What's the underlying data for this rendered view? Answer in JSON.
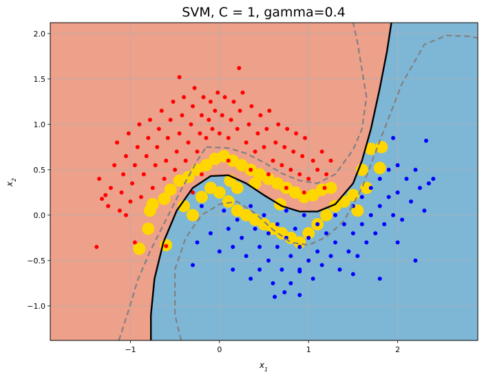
{
  "chart_data": {
    "type": "scatter",
    "title": "SVM, C = 1, gamma=0.4",
    "xlabel_base": "x",
    "xlabel_sub": "1",
    "ylabel_base": "x",
    "ylabel_sub": "2",
    "xlim": [
      -1.9,
      2.9
    ],
    "ylim": [
      -1.38,
      2.12
    ],
    "xticks": [
      -1,
      0,
      1,
      2
    ],
    "xtick_labels": [
      "−1",
      "0",
      "1",
      "2"
    ],
    "yticks": [
      -1.0,
      -0.5,
      0.0,
      0.5,
      1.0,
      1.5,
      2.0
    ],
    "ytick_labels": [
      "−1.0",
      "−0.5",
      "0.0",
      "0.5",
      "1.0",
      "1.5",
      "2.0"
    ],
    "grid": true,
    "colors": {
      "class0_region": "#eda08a",
      "class1_region": "#7eb6d6",
      "class0_points": "#ff0000",
      "class1_points": "#0000ff",
      "support_vectors": "#ffd700",
      "decision_boundary": "#000000",
      "margin": "#808080"
    },
    "decision_boundary": [
      [
        -0.77,
        -1.38
      ],
      [
        -0.77,
        -1.1
      ],
      [
        -0.73,
        -0.7
      ],
      [
        -0.63,
        -0.3
      ],
      [
        -0.48,
        0.05
      ],
      [
        -0.3,
        0.3
      ],
      [
        -0.1,
        0.43
      ],
      [
        0.1,
        0.44
      ],
      [
        0.3,
        0.35
      ],
      [
        0.5,
        0.22
      ],
      [
        0.7,
        0.1
      ],
      [
        0.9,
        0.04
      ],
      [
        1.1,
        0.04
      ],
      [
        1.3,
        0.12
      ],
      [
        1.5,
        0.35
      ],
      [
        1.6,
        0.6
      ],
      [
        1.7,
        0.95
      ],
      [
        1.8,
        1.4
      ],
      [
        1.88,
        1.8
      ],
      [
        1.93,
        2.12
      ]
    ],
    "margin_upper": [
      [
        -0.15,
        0.75
      ],
      [
        0.1,
        0.74
      ],
      [
        0.3,
        0.68
      ],
      [
        0.5,
        0.58
      ],
      [
        0.7,
        0.46
      ],
      [
        0.9,
        0.38
      ],
      [
        1.1,
        0.35
      ],
      [
        1.3,
        0.45
      ],
      [
        1.5,
        0.72
      ],
      [
        1.6,
        0.95
      ],
      [
        1.65,
        1.3
      ],
      [
        1.6,
        1.6
      ],
      [
        1.55,
        1.9
      ],
      [
        1.5,
        2.12
      ]
    ],
    "margin_lower": [
      [
        -0.43,
        -1.38
      ],
      [
        -0.5,
        -1.1
      ],
      [
        -0.5,
        -0.6
      ],
      [
        -0.38,
        -0.25
      ],
      [
        -0.2,
        0.0
      ],
      [
        0.0,
        0.12
      ],
      [
        0.2,
        0.15
      ],
      [
        0.4,
        0.02
      ],
      [
        0.6,
        -0.16
      ],
      [
        0.8,
        -0.3
      ],
      [
        1.0,
        -0.33
      ],
      [
        1.2,
        -0.24
      ],
      [
        1.4,
        -0.06
      ],
      [
        1.6,
        0.3
      ],
      [
        1.8,
        0.82
      ],
      [
        2.05,
        1.45
      ],
      [
        2.3,
        1.88
      ],
      [
        2.55,
        1.98
      ],
      [
        2.8,
        1.97
      ],
      [
        2.9,
        1.95
      ]
    ],
    "margin_left": [
      [
        -1.13,
        -1.38
      ],
      [
        -1.02,
        -1.05
      ],
      [
        -0.92,
        -0.72
      ],
      [
        -0.78,
        -0.4
      ],
      [
        -0.6,
        -0.05
      ],
      [
        -0.42,
        0.3
      ],
      [
        -0.25,
        0.6
      ],
      [
        -0.15,
        0.75
      ]
    ],
    "series": [
      {
        "class": 0,
        "points": [
          [
            -1.35,
            0.4
          ],
          [
            -1.32,
            0.18
          ],
          [
            -1.25,
            0.1
          ],
          [
            -1.22,
            0.3
          ],
          [
            -1.18,
            0.55
          ],
          [
            -1.15,
            0.8
          ],
          [
            -1.12,
            0.05
          ],
          [
            -1.1,
            0.25
          ],
          [
            -1.08,
            0.45
          ],
          [
            -1.05,
            0.65
          ],
          [
            -1.02,
            0.9
          ],
          [
            -1.0,
            0.15
          ],
          [
            -0.98,
            0.35
          ],
          [
            -0.95,
            0.55
          ],
          [
            -0.92,
            0.75
          ],
          [
            -0.9,
            1.0
          ],
          [
            -0.88,
            0.2
          ],
          [
            -0.85,
            0.45
          ],
          [
            -0.82,
            0.65
          ],
          [
            -0.8,
            0.85
          ],
          [
            -0.78,
            1.05
          ],
          [
            -0.75,
            0.3
          ],
          [
            -0.72,
            0.55
          ],
          [
            -0.7,
            0.75
          ],
          [
            -0.68,
            0.95
          ],
          [
            -0.65,
            1.15
          ],
          [
            -0.62,
            0.4
          ],
          [
            -0.6,
            0.6
          ],
          [
            -0.58,
            0.85
          ],
          [
            -0.55,
            1.05
          ],
          [
            -0.52,
            1.25
          ],
          [
            -0.5,
            0.5
          ],
          [
            -0.48,
            0.7
          ],
          [
            -0.45,
            0.9
          ],
          [
            -0.42,
            1.1
          ],
          [
            -0.4,
            1.3
          ],
          [
            -0.38,
            0.6
          ],
          [
            -0.35,
            0.8
          ],
          [
            -0.32,
            1.0
          ],
          [
            -0.3,
            1.2
          ],
          [
            -0.28,
            1.4
          ],
          [
            -0.25,
            0.7
          ],
          [
            -0.22,
            0.9
          ],
          [
            -0.2,
            1.1
          ],
          [
            -0.18,
            1.3
          ],
          [
            -0.15,
            0.85
          ],
          [
            -0.12,
            1.05
          ],
          [
            -0.1,
            1.25
          ],
          [
            -0.08,
            0.95
          ],
          [
            -0.05,
            1.15
          ],
          [
            -0.02,
            1.35
          ],
          [
            0.0,
            0.9
          ],
          [
            0.03,
            1.1
          ],
          [
            0.06,
            1.3
          ],
          [
            0.1,
            0.85
          ],
          [
            0.13,
            1.05
          ],
          [
            0.16,
            1.25
          ],
          [
            0.2,
            0.95
          ],
          [
            0.23,
            1.15
          ],
          [
            0.26,
            1.35
          ],
          [
            0.3,
            0.8
          ],
          [
            0.33,
            1.0
          ],
          [
            0.36,
            1.2
          ],
          [
            0.4,
            0.7
          ],
          [
            0.43,
            0.9
          ],
          [
            0.46,
            1.1
          ],
          [
            0.5,
            0.75
          ],
          [
            0.53,
            0.95
          ],
          [
            0.56,
            1.15
          ],
          [
            0.6,
            0.6
          ],
          [
            0.63,
            0.8
          ],
          [
            0.66,
            1.0
          ],
          [
            0.7,
            0.55
          ],
          [
            0.73,
            0.75
          ],
          [
            0.76,
            0.95
          ],
          [
            0.8,
            0.5
          ],
          [
            0.83,
            0.7
          ],
          [
            0.86,
            0.9
          ],
          [
            0.9,
            0.45
          ],
          [
            0.93,
            0.65
          ],
          [
            0.96,
            0.85
          ],
          [
            1.0,
            0.4
          ],
          [
            1.05,
            0.6
          ],
          [
            1.1,
            0.5
          ],
          [
            1.15,
            0.7
          ],
          [
            1.2,
            0.45
          ],
          [
            1.25,
            0.6
          ],
          [
            -0.45,
            1.52
          ],
          [
            0.22,
            1.62
          ],
          [
            -1.38,
            -0.35
          ],
          [
            -0.95,
            -0.3
          ],
          [
            -0.6,
            -0.34
          ],
          [
            -1.05,
            0.0
          ],
          [
            -1.28,
            0.22
          ],
          [
            -0.3,
            0.25
          ],
          [
            -0.2,
            0.45
          ],
          [
            0.1,
            0.6
          ],
          [
            0.35,
            0.5
          ],
          [
            0.55,
            0.45
          ],
          [
            0.75,
            0.3
          ],
          [
            0.95,
            0.25
          ],
          [
            1.18,
            0.3
          ]
        ]
      },
      {
        "class": 1,
        "points": [
          [
            -0.3,
            -0.55
          ],
          [
            -0.25,
            -0.3
          ],
          [
            -0.2,
            0.1
          ],
          [
            -0.1,
            -0.2
          ],
          [
            0.0,
            -0.4
          ],
          [
            0.05,
            0.05
          ],
          [
            0.1,
            -0.15
          ],
          [
            0.15,
            -0.35
          ],
          [
            0.15,
            -0.6
          ],
          [
            0.2,
            -0.05
          ],
          [
            0.25,
            -0.25
          ],
          [
            0.3,
            -0.45
          ],
          [
            0.35,
            0.1
          ],
          [
            0.35,
            -0.7
          ],
          [
            0.4,
            -0.15
          ],
          [
            0.45,
            -0.35
          ],
          [
            0.45,
            -0.6
          ],
          [
            0.5,
            0.0
          ],
          [
            0.55,
            -0.2
          ],
          [
            0.55,
            -0.5
          ],
          [
            0.6,
            -0.75
          ],
          [
            0.65,
            -0.1
          ],
          [
            0.65,
            -0.35
          ],
          [
            0.7,
            -0.6
          ],
          [
            0.75,
            0.05
          ],
          [
            0.75,
            -0.25
          ],
          [
            0.8,
            -0.45
          ],
          [
            0.8,
            -0.75
          ],
          [
            0.85,
            -0.15
          ],
          [
            0.9,
            -0.35
          ],
          [
            0.9,
            -0.6
          ],
          [
            0.95,
            0.0
          ],
          [
            1.0,
            -0.25
          ],
          [
            1.0,
            -0.5
          ],
          [
            1.05,
            -0.7
          ],
          [
            1.1,
            -0.1
          ],
          [
            1.1,
            -0.4
          ],
          [
            1.15,
            -0.55
          ],
          [
            1.2,
            -0.2
          ],
          [
            1.25,
            -0.45
          ],
          [
            1.3,
            0.0
          ],
          [
            1.3,
            -0.3
          ],
          [
            1.35,
            -0.6
          ],
          [
            1.4,
            -0.1
          ],
          [
            1.45,
            -0.4
          ],
          [
            1.5,
            0.1
          ],
          [
            1.5,
            -0.2
          ],
          [
            1.55,
            -0.45
          ],
          [
            1.6,
            0.2
          ],
          [
            1.6,
            -0.1
          ],
          [
            1.65,
            -0.3
          ],
          [
            1.7,
            0.3
          ],
          [
            1.7,
            0.0
          ],
          [
            1.75,
            -0.2
          ],
          [
            1.8,
            0.4
          ],
          [
            1.8,
            0.1
          ],
          [
            1.85,
            -0.1
          ],
          [
            1.9,
            0.5
          ],
          [
            1.9,
            0.2
          ],
          [
            1.95,
            0.0
          ],
          [
            2.0,
            0.55
          ],
          [
            2.0,
            0.25
          ],
          [
            2.05,
            -0.05
          ],
          [
            2.1,
            0.4
          ],
          [
            2.15,
            0.15
          ],
          [
            2.2,
            0.5
          ],
          [
            2.25,
            0.3
          ],
          [
            2.3,
            0.05
          ],
          [
            2.35,
            0.35
          ],
          [
            2.4,
            0.4
          ],
          [
            1.95,
            0.85
          ],
          [
            2.32,
            0.82
          ],
          [
            0.9,
            -0.88
          ],
          [
            0.73,
            -0.85
          ],
          [
            0.9,
            -0.62
          ],
          [
            0.62,
            -0.9
          ],
          [
            1.8,
            -0.7
          ],
          [
            1.5,
            -0.65
          ],
          [
            2.2,
            -0.5
          ],
          [
            2.0,
            -0.3
          ]
        ]
      }
    ],
    "support_vectors": [
      [
        -0.9,
        -0.37
      ],
      [
        -0.6,
        -0.33
      ],
      [
        -0.8,
        -0.15
      ],
      [
        -0.78,
        0.05
      ],
      [
        -0.75,
        0.12
      ],
      [
        -0.62,
        0.18
      ],
      [
        -0.55,
        0.28
      ],
      [
        -0.45,
        0.38
      ],
      [
        -0.35,
        0.42
      ],
      [
        -0.25,
        0.5
      ],
      [
        -0.15,
        0.55
      ],
      [
        -0.05,
        0.62
      ],
      [
        0.05,
        0.65
      ],
      [
        0.15,
        0.6
      ],
      [
        0.25,
        0.55
      ],
      [
        0.35,
        0.5
      ],
      [
        0.45,
        0.45
      ],
      [
        0.55,
        0.4
      ],
      [
        0.65,
        0.35
      ],
      [
        0.75,
        0.3
      ],
      [
        0.85,
        0.25
      ],
      [
        0.95,
        0.2
      ],
      [
        1.05,
        0.22
      ],
      [
        1.15,
        0.28
      ],
      [
        1.25,
        0.3
      ],
      [
        -0.3,
        0.0
      ],
      [
        -0.2,
        0.2
      ],
      [
        -0.1,
        0.3
      ],
      [
        0.0,
        0.25
      ],
      [
        0.1,
        0.15
      ],
      [
        0.2,
        0.05
      ],
      [
        0.3,
        0.0
      ],
      [
        0.4,
        -0.05
      ],
      [
        0.5,
        -0.1
      ],
      [
        0.6,
        -0.15
      ],
      [
        0.7,
        -0.2
      ],
      [
        0.8,
        -0.25
      ],
      [
        0.9,
        -0.3
      ],
      [
        1.0,
        -0.2
      ],
      [
        1.1,
        -0.1
      ],
      [
        1.2,
        0.0
      ],
      [
        1.3,
        0.1
      ],
      [
        1.4,
        0.15
      ],
      [
        1.5,
        0.22
      ],
      [
        1.55,
        0.05
      ],
      [
        1.6,
        0.5
      ],
      [
        1.65,
        0.3
      ],
      [
        1.7,
        0.73
      ],
      [
        1.82,
        0.75
      ],
      [
        1.8,
        0.52
      ],
      [
        0.12,
        0.38
      ],
      [
        0.4,
        0.35
      ],
      [
        0.68,
        0.12
      ],
      [
        -0.4,
        0.1
      ],
      [
        0.2,
        0.3
      ]
    ]
  }
}
